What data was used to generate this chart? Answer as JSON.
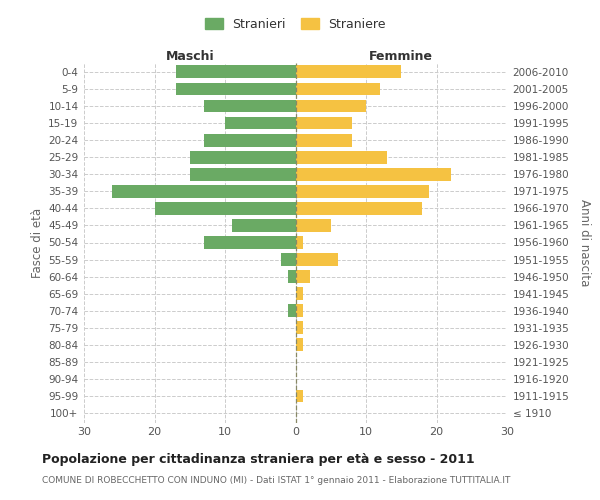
{
  "age_groups": [
    "100+",
    "95-99",
    "90-94",
    "85-89",
    "80-84",
    "75-79",
    "70-74",
    "65-69",
    "60-64",
    "55-59",
    "50-54",
    "45-49",
    "40-44",
    "35-39",
    "30-34",
    "25-29",
    "20-24",
    "15-19",
    "10-14",
    "5-9",
    "0-4"
  ],
  "birth_years": [
    "≤ 1910",
    "1911-1915",
    "1916-1920",
    "1921-1925",
    "1926-1930",
    "1931-1935",
    "1936-1940",
    "1941-1945",
    "1946-1950",
    "1951-1955",
    "1956-1960",
    "1961-1965",
    "1966-1970",
    "1971-1975",
    "1976-1980",
    "1981-1985",
    "1986-1990",
    "1991-1995",
    "1996-2000",
    "2001-2005",
    "2006-2010"
  ],
  "males": [
    0,
    0,
    0,
    0,
    0,
    0,
    1,
    0,
    1,
    2,
    13,
    9,
    20,
    26,
    15,
    15,
    13,
    10,
    13,
    17,
    17
  ],
  "females": [
    0,
    1,
    0,
    0,
    1,
    1,
    1,
    1,
    2,
    6,
    1,
    5,
    18,
    19,
    22,
    13,
    8,
    8,
    10,
    12,
    15
  ],
  "male_color": "#6aaa64",
  "female_color": "#f5c242",
  "grid_color": "#cccccc",
  "center_line_color": "#999977",
  "title": "Popolazione per cittadinanza straniera per età e sesso - 2011",
  "subtitle": "COMUNE DI ROBECCHETTO CON INDUNO (MI) - Dati ISTAT 1° gennaio 2011 - Elaborazione TUTTITALIA.IT",
  "ylabel_left": "Fasce di età",
  "ylabel_right": "Anni di nascita",
  "label_maschi": "Maschi",
  "label_femmine": "Femmine",
  "legend_male": "Stranieri",
  "legend_female": "Straniere",
  "xlim": 30,
  "bar_height": 0.75,
  "tick_fontsize": 7.5,
  "axis_label_fontsize": 8.5,
  "header_fontsize": 9,
  "title_fontsize": 9,
  "subtitle_fontsize": 6.5,
  "legend_fontsize": 9
}
